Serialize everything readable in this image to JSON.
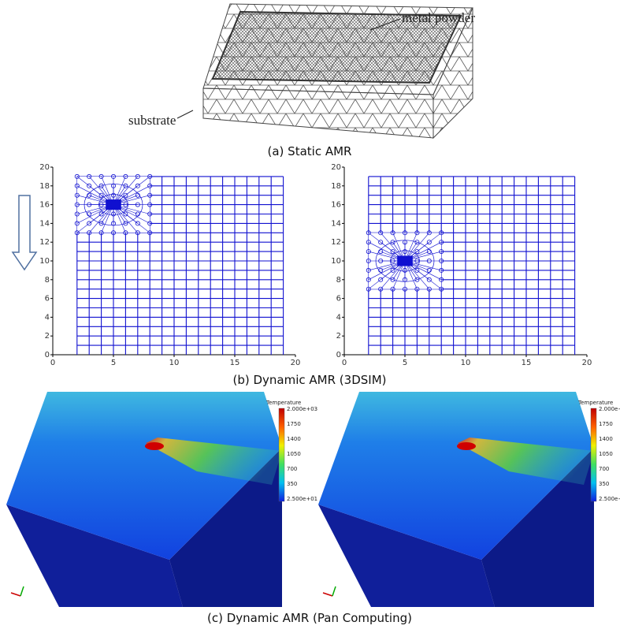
{
  "panel_a": {
    "labels": [
      "metal powder",
      "substrate"
    ],
    "caption": "(a) Static AMR"
  },
  "panel_b": {
    "plots": [
      {
        "xlim": [
          0,
          20
        ],
        "ylim": [
          0,
          20
        ],
        "xticks": [
          0,
          5,
          10,
          15,
          20
        ],
        "yticks": [
          0,
          2,
          4,
          6,
          8,
          10,
          12,
          14,
          16,
          18,
          20
        ]
      },
      {
        "xlim": [
          0,
          20
        ],
        "ylim": [
          0,
          20
        ],
        "xticks": [
          0,
          5,
          10,
          15,
          20
        ],
        "yticks": [
          0,
          2,
          4,
          6,
          8,
          10,
          12,
          14,
          16,
          18,
          20
        ]
      }
    ],
    "caption": "(b) Dynamic AMR (3DSIM)"
  },
  "panel_c": {
    "renders": [
      {
        "colorbar_title": "Temperature",
        "colorbar_labels": [
          "2.000e+03",
          "1750",
          "1400",
          "1050",
          "700",
          "350",
          "2.500e+01"
        ]
      },
      {
        "colorbar_title": "Temperature",
        "colorbar_labels": [
          "2.000e+",
          "1750",
          "1400",
          "1050",
          "700",
          "350",
          "2.500e+"
        ]
      }
    ],
    "caption": "(c) Dynamic AMR (Pan Computing)"
  }
}
